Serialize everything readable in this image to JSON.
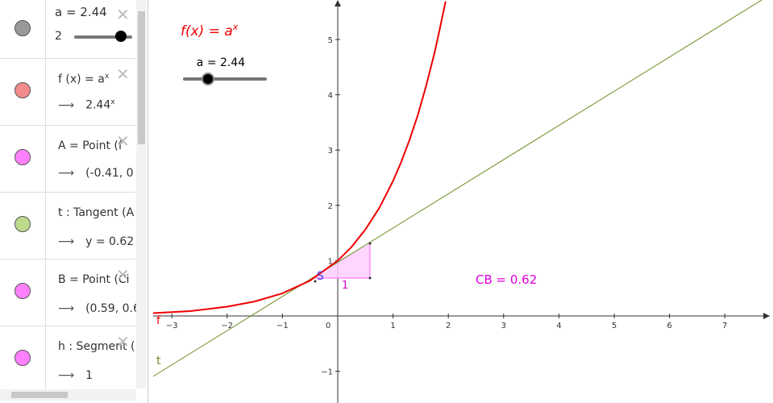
{
  "algebra_view": {
    "items": [
      {
        "line1": "a = 2.44",
        "line2": "2"
      },
      {
        "line1": "f (x) = a",
        "line1_sup": "x",
        "line2": "2.44",
        "line2_sup": "x"
      },
      {
        "line1": "A = Point (f",
        "line2": "(-0.41, 0"
      },
      {
        "line1": "t : Tangent (A",
        "line2": "y = 0.62"
      },
      {
        "line1": "B = Point (Ci",
        "line2": "(0.59, 0.6"
      },
      {
        "line1": "h : Segment (",
        "line2": "1"
      }
    ]
  },
  "graphics_view": {
    "formula": "f(x) = a",
    "formula_sup": "x",
    "slider_label": "a = 2.44",
    "xticks": [
      "−3",
      "−2",
      "−1",
      "1",
      "2",
      "3",
      "4",
      "5",
      "6",
      "7"
    ],
    "yticks": [
      "−1",
      "1",
      "2",
      "3",
      "4",
      "5"
    ],
    "origin": "0",
    "curve_label": "f",
    "tangent_label": "t",
    "point_label": "S",
    "slope_run": "1",
    "slope_text": "CB = 0.62"
  }
}
